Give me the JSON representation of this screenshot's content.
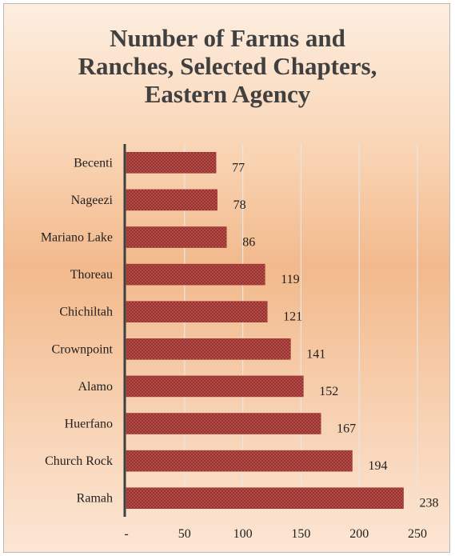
{
  "chart_data": {
    "type": "bar",
    "orientation": "horizontal",
    "title": "Number of Farms and\nRanches, Selected Chapters,\nEastern Agency",
    "categories": [
      "Becenti",
      "Nageezi",
      "Mariano Lake",
      "Thoreau",
      "Chichiltah",
      "Crownpoint",
      "Alamo",
      "Huerfano",
      "Church Rock",
      "Ramah"
    ],
    "values": [
      77,
      78,
      86,
      119,
      121,
      141,
      152,
      167,
      194,
      238
    ],
    "value_labels": [
      "77",
      "78",
      "86",
      "119",
      "121",
      "141",
      "152",
      "167",
      "194",
      "238"
    ],
    "xlim": [
      0,
      250
    ],
    "xticks": [
      0,
      50,
      100,
      150,
      200,
      250
    ],
    "xtick_labels": [
      "-",
      "50",
      "100",
      "150",
      "200",
      "250"
    ],
    "grid": "vertical",
    "legend": "none",
    "colors": {
      "bar_fill": "#c0504d",
      "bar_pattern": "#8b2e2b",
      "axis": "#3f3f3f",
      "grid": "#e6e6e6",
      "title": "#404040"
    }
  }
}
